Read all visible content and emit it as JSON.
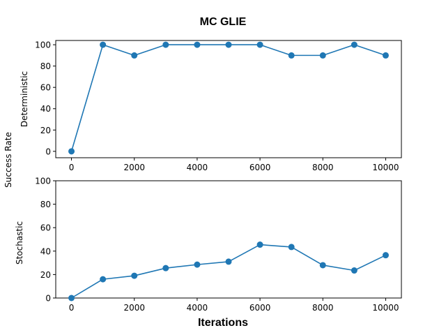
{
  "figure": {
    "title": "MC GLIE",
    "shared_ylabel": "Success Rate",
    "xlabel": "Iterations",
    "line_color": "#1f77b4"
  },
  "chart_data": [
    {
      "type": "line",
      "ylabel": "Deterministic",
      "x": [
        0,
        1000,
        2000,
        3000,
        4000,
        5000,
        6000,
        7000,
        8000,
        9000,
        10000
      ],
      "y": [
        0,
        100,
        90,
        100,
        100,
        100,
        100,
        90,
        90,
        100,
        90
      ],
      "xlim": [
        -500,
        10500
      ],
      "ylim": [
        -6,
        104
      ],
      "xticks": [
        0,
        2000,
        4000,
        6000,
        8000,
        10000
      ],
      "yticks": [
        0,
        20,
        40,
        60,
        80,
        100
      ],
      "grid": false
    },
    {
      "type": "line",
      "ylabel": "Stochastic",
      "x": [
        0,
        1000,
        2000,
        3000,
        4000,
        5000,
        6000,
        7000,
        8000,
        9000,
        10000
      ],
      "y": [
        0,
        16,
        19,
        25.5,
        28.5,
        31,
        45.5,
        43.5,
        28,
        23.5,
        36.5
      ],
      "xlim": [
        -500,
        10500
      ],
      "ylim": [
        0,
        100
      ],
      "xticks": [
        0,
        2000,
        4000,
        6000,
        8000,
        10000
      ],
      "yticks": [
        0,
        20,
        40,
        60,
        80,
        100
      ],
      "grid": false
    }
  ]
}
